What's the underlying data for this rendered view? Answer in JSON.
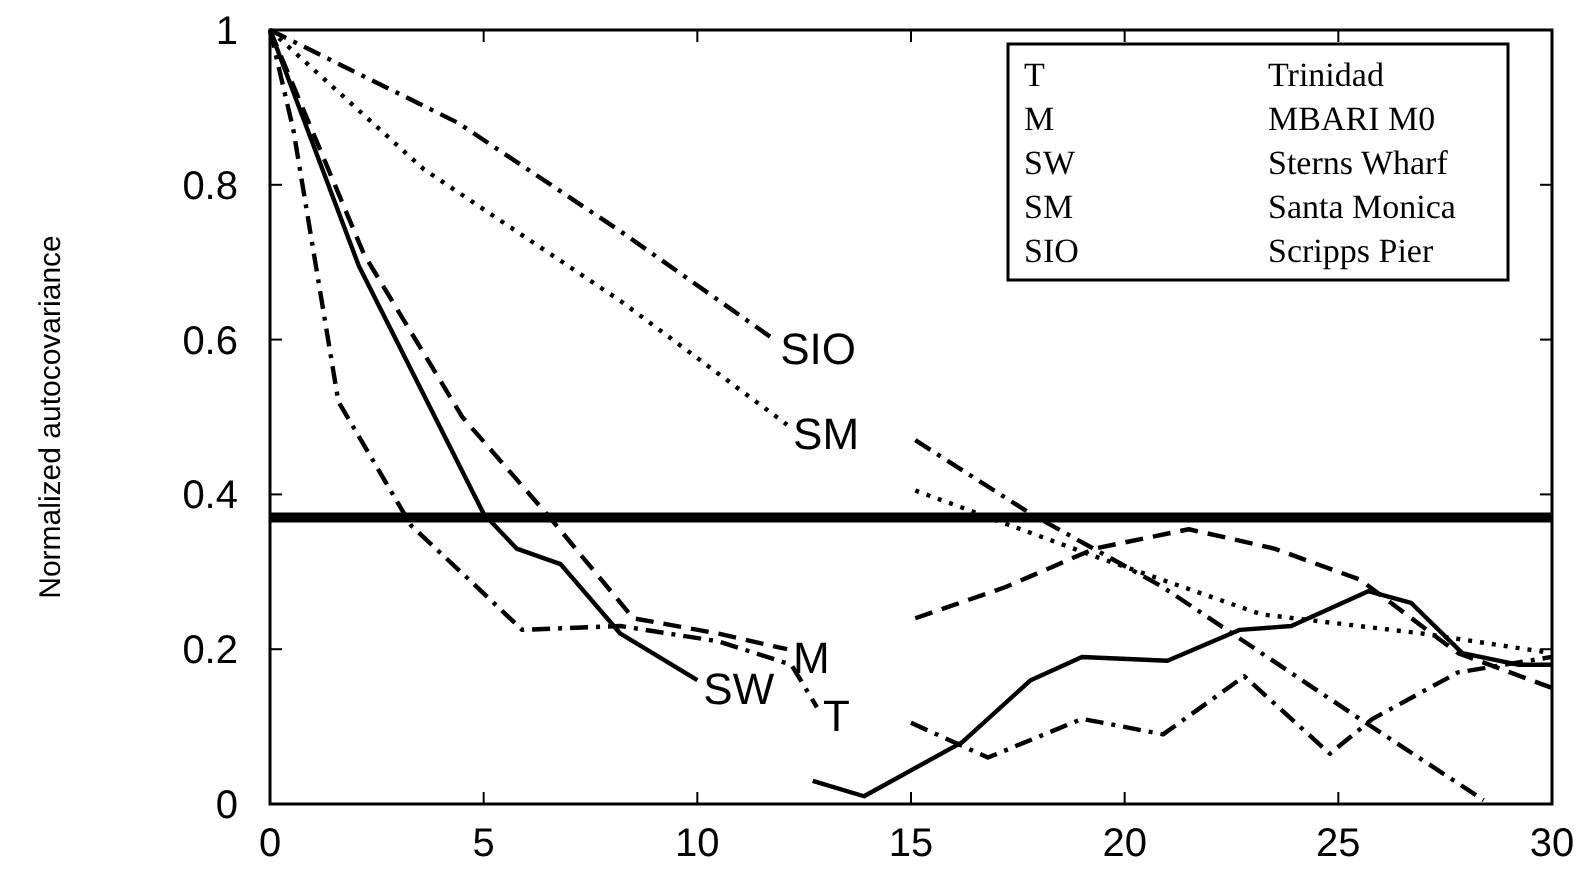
{
  "chart_data": {
    "type": "line",
    "ylabel": "Normalized autocovariance",
    "xlim": [
      0,
      30
    ],
    "ylim": [
      0,
      1
    ],
    "xticks": [
      0,
      5,
      10,
      15,
      20,
      25,
      30
    ],
    "yticks": [
      0,
      0.2,
      0.4,
      0.6,
      0.8,
      1
    ],
    "annotations": [
      "Trinidad",
      "MBARI M0",
      "Sterns Wharf",
      "Santa Monica",
      "Scripps Pier"
    ],
    "ref_lines": [
      {
        "axis": "y",
        "value": 0.37,
        "color": "#000000",
        "line_style": "solid"
      }
    ],
    "series": [
      {
        "name": "T",
        "color": "#000000",
        "line_style": "dashdot",
        "x": [
          0,
          0.55,
          1.6,
          3.3,
          4.85,
          5.9,
          8.2,
          10.5,
          12.2,
          12.8,
          13.9,
          15,
          16.8,
          19,
          20.9,
          22.8,
          24.8,
          25.8,
          27.8,
          30
        ],
        "values": [
          1,
          0.87,
          0.52,
          0.36,
          0.28,
          0.225,
          0.23,
          0.21,
          0.18,
          0.125,
          null,
          0.105,
          0.06,
          0.11,
          0.09,
          0.165,
          0.065,
          0.11,
          0.17,
          0.19
        ]
      },
      {
        "name": "M",
        "color": "#000000",
        "line_style": "dashed",
        "x": [
          0,
          2.2,
          4.5,
          6.55,
          8.5,
          10.5,
          12.1,
          13.6,
          15.1,
          17.2,
          19.3,
          21.5,
          23.5,
          25.5,
          27.8,
          30
        ],
        "values": [
          1,
          0.71,
          0.5,
          0.37,
          0.24,
          0.22,
          0.2,
          null,
          0.24,
          0.28,
          0.33,
          0.355,
          0.33,
          0.29,
          0.195,
          0.15
        ]
      },
      {
        "name": "SW",
        "color": "#000000",
        "line_style": "solid",
        "x": [
          0,
          2.08,
          5,
          5.77,
          6.8,
          8.2,
          10,
          11.35,
          12.7,
          13.9,
          16.2,
          17.8,
          19,
          21,
          22.7,
          23.9,
          25.7,
          26.7,
          27.9,
          29.2,
          30
        ],
        "values": [
          1,
          0.695,
          0.375,
          0.33,
          0.31,
          0.22,
          0.16,
          null,
          0.03,
          0.01,
          0.08,
          0.16,
          0.19,
          0.185,
          0.225,
          0.23,
          0.275,
          0.26,
          0.195,
          0.18,
          0.18
        ]
      },
      {
        "name": "SM",
        "color": "#000000",
        "line_style": "dotted",
        "x": [
          0,
          3.6,
          8.2,
          12.1,
          13.6,
          15.1,
          19.3,
          23.2,
          27,
          30
        ],
        "values": [
          1,
          0.82,
          0.65,
          0.49,
          null,
          0.405,
          0.32,
          0.245,
          0.22,
          0.195
        ]
      },
      {
        "name": "SIO",
        "color": "#000000",
        "line_style": "dashdot",
        "x": [
          0,
          4.4,
          8.2,
          11.8,
          13.45,
          15.1,
          17.8,
          20.9,
          25.5,
          28.4
        ],
        "values": [
          1,
          0.88,
          0.74,
          0.6,
          null,
          0.47,
          0.375,
          0.28,
          0.11,
          0.005
        ]
      }
    ]
  }
}
